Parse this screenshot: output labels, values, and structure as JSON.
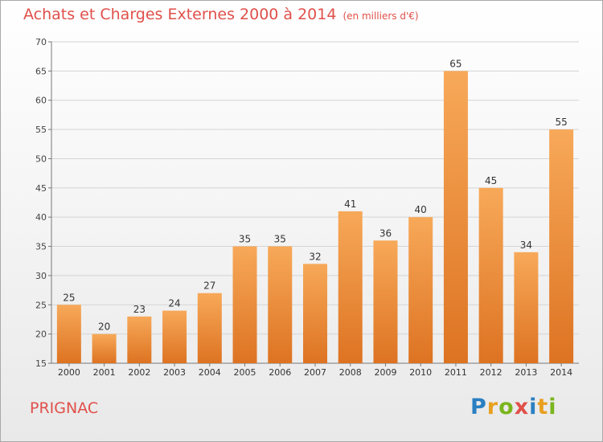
{
  "title": "Achats et Charges Externes 2000 à 2014",
  "unit": "(en milliers d'€)",
  "commune": "PRIGNAC",
  "logo": {
    "text": "Proxiti",
    "colors": [
      "#2a7fc1",
      "#e8a020",
      "#7ab51d",
      "#e0504a",
      "#2a7fc1",
      "#e8a020",
      "#7ab51d"
    ]
  },
  "colors": {
    "bar_top": "#f7a959",
    "bar_bottom": "#dd7322",
    "title": "#e0504a"
  },
  "chart_data": {
    "type": "bar",
    "title": "Achats et Charges Externes 2000 à 2014",
    "subtitle": "(en milliers d'€)",
    "categories": [
      "2000",
      "2001",
      "2002",
      "2003",
      "2004",
      "2005",
      "2006",
      "2007",
      "2008",
      "2009",
      "2010",
      "2011",
      "2012",
      "2013",
      "2014"
    ],
    "values": [
      25,
      20,
      23,
      24,
      27,
      35,
      35,
      32,
      41,
      36,
      40,
      65,
      45,
      34,
      55
    ],
    "ylim": [
      15,
      70
    ],
    "yticks": [
      15,
      20,
      25,
      30,
      35,
      40,
      45,
      50,
      55,
      60,
      65,
      70
    ],
    "grid": true,
    "data_labels": true
  }
}
